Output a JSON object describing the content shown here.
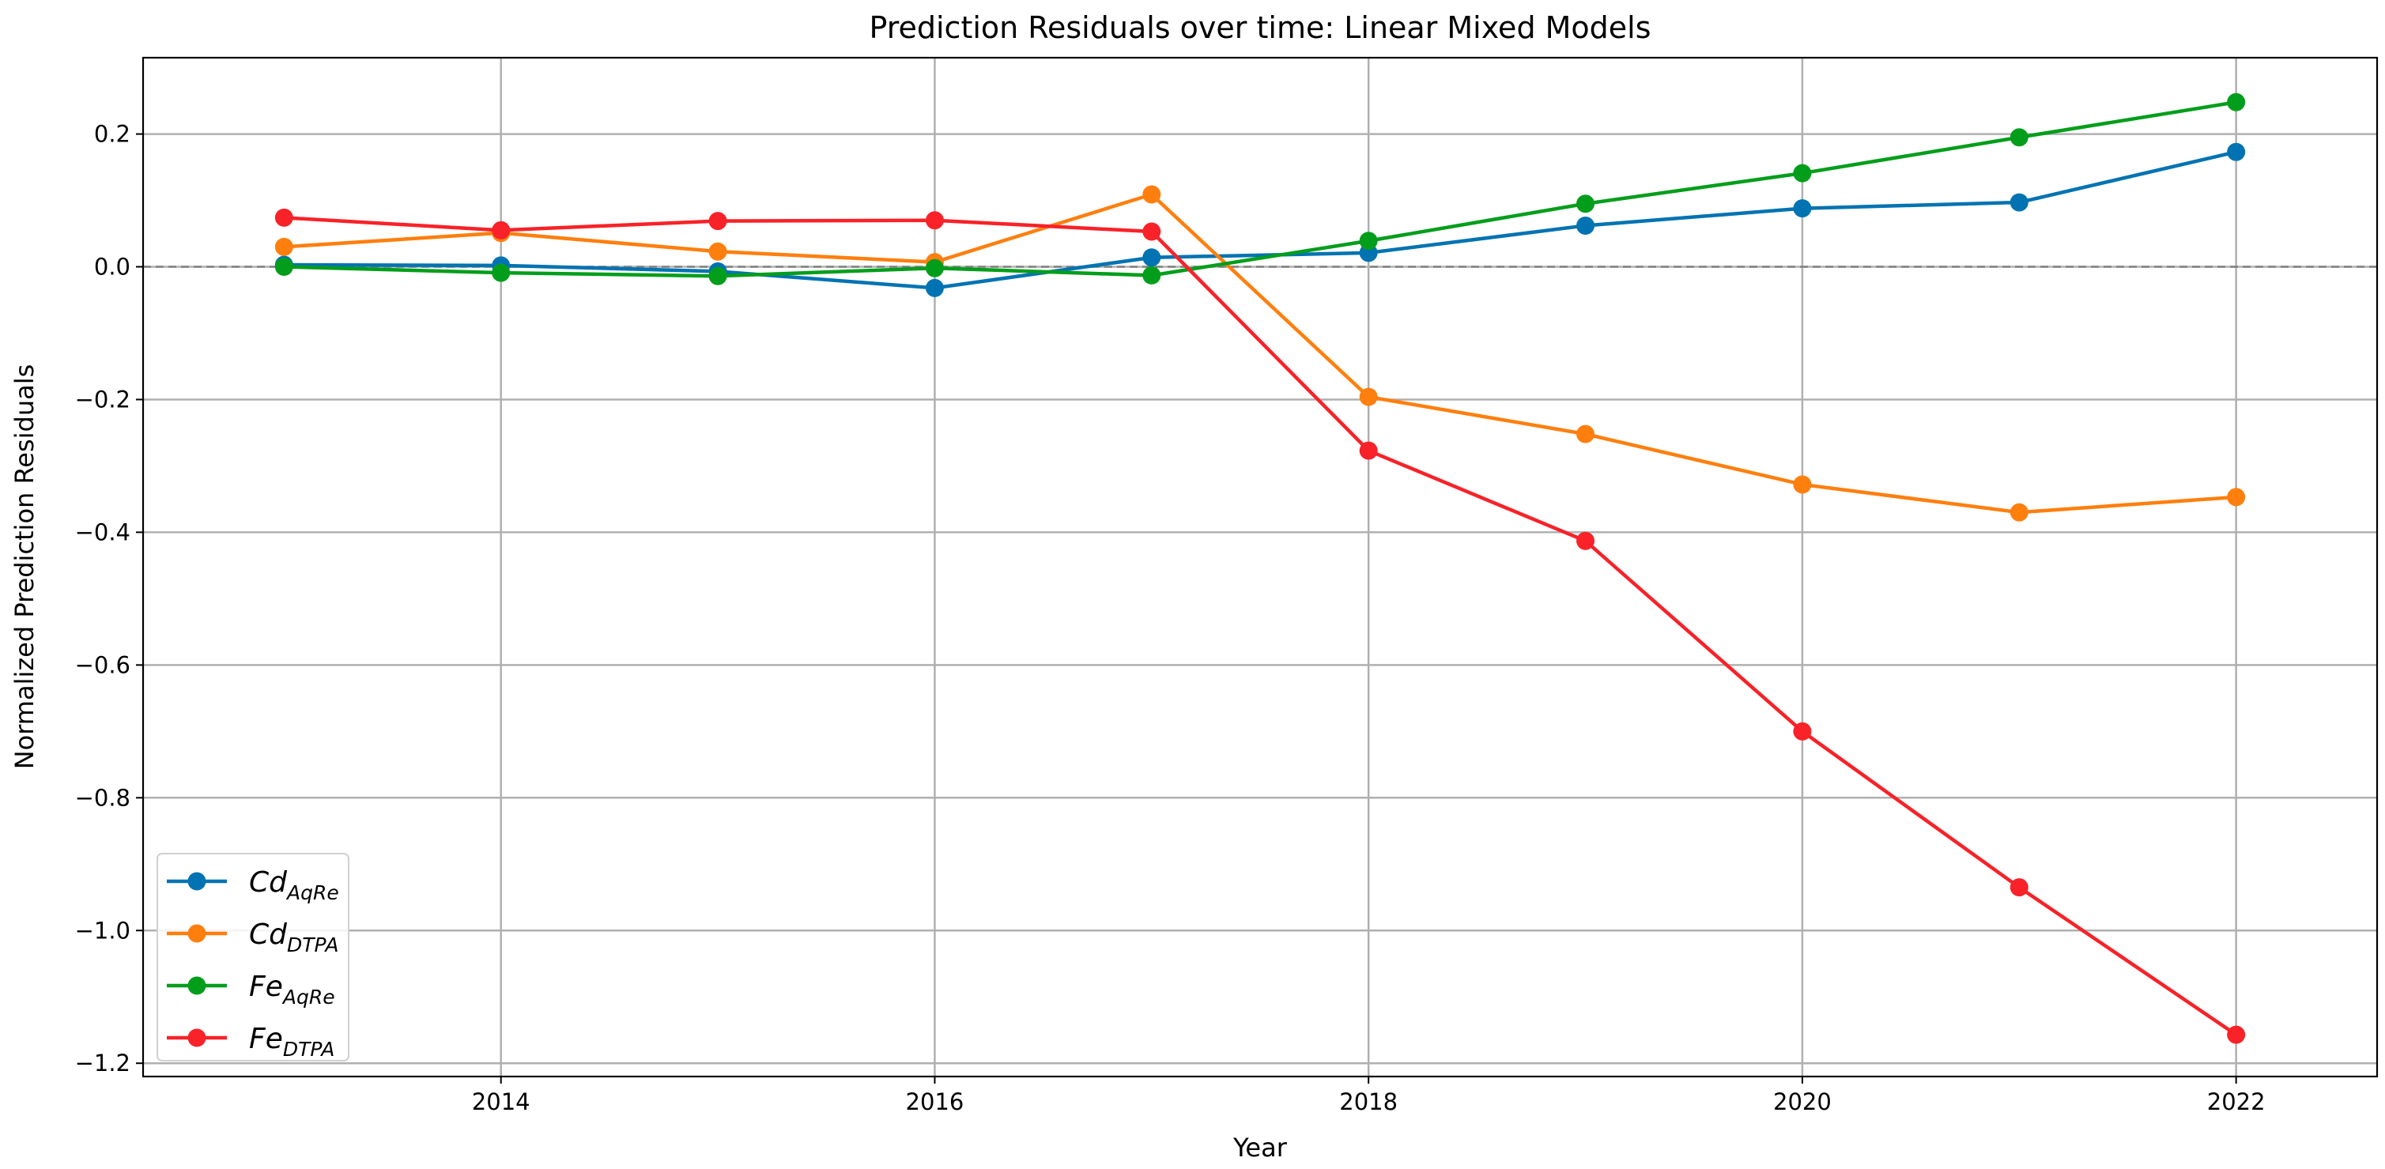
{
  "chart_data": {
    "type": "line",
    "title": "Prediction Residuals over time: Linear Mixed Models",
    "xlabel": "Year",
    "ylabel": "Normalized Prediction Residuals",
    "x": [
      2013,
      2014,
      2015,
      2016,
      2017,
      2018,
      2019,
      2020,
      2021,
      2022
    ],
    "xlim": [
      2012.35,
      2022.65
    ],
    "ylim": [
      -1.22,
      0.315
    ],
    "xticks": [
      "2014",
      "2016",
      "2018",
      "2020",
      "2022"
    ],
    "yticks": [
      "0.2",
      "0.0",
      "−0.2",
      "−0.4",
      "−0.6",
      "−0.8",
      "−1.0",
      "−1.2"
    ],
    "grid": true,
    "reference_line": {
      "y": 0,
      "style": "dashed",
      "color": "#808080"
    },
    "legend_position": "lower-left",
    "series": [
      {
        "name": "Cd",
        "sub": "AqRe",
        "color": "#0173b2",
        "values": [
          0.003,
          0.002,
          -0.007,
          -0.032,
          0.014,
          0.021,
          0.062,
          0.088,
          0.097,
          0.173
        ]
      },
      {
        "name": "Cd",
        "sub": "DTPA",
        "color": "#ff7f0e",
        "values": [
          0.03,
          0.051,
          0.023,
          0.007,
          0.109,
          -0.196,
          -0.252,
          -0.328,
          -0.37,
          -0.347
        ]
      },
      {
        "name": "Fe",
        "sub": "AqRe",
        "color": "#029e1b",
        "values": [
          0.0,
          -0.009,
          -0.014,
          -0.002,
          -0.013,
          0.039,
          0.095,
          0.141,
          0.195,
          0.248
        ]
      },
      {
        "name": "Fe",
        "sub": "DTPA",
        "color": "#f82228",
        "values": [
          0.074,
          0.055,
          0.069,
          0.07,
          0.053,
          -0.277,
          -0.413,
          -0.7,
          -0.935,
          -1.157
        ]
      }
    ]
  }
}
